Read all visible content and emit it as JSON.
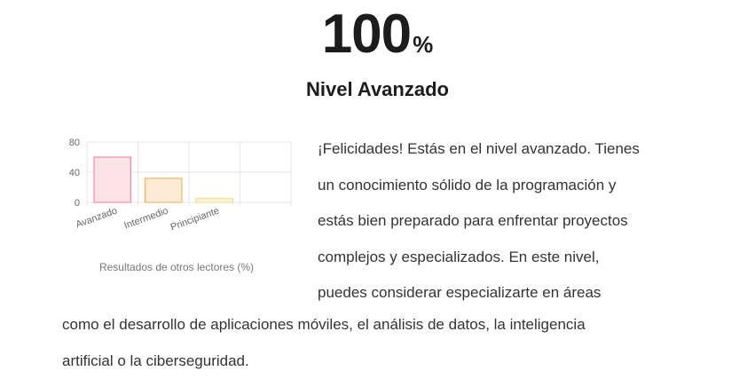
{
  "result": {
    "score": "100",
    "unit": "%",
    "level_title": "Nivel Avanzado"
  },
  "chart_data": {
    "type": "bar",
    "categories": [
      "Avanzado",
      "Intermedio",
      "Principiante",
      ""
    ],
    "values": [
      60,
      32,
      5,
      0
    ],
    "yticks": [
      0,
      40,
      80
    ],
    "ylim": [
      0,
      80
    ],
    "caption": "Resultados de otros lectores (%)",
    "colors": {
      "fills": [
        "#fde2e8",
        "#fdebd6",
        "#fef6da"
      ],
      "strokes": [
        "#f07b94",
        "#f0a94d",
        "#f2d57a"
      ],
      "grid": "#e6e6e6",
      "axis_text": "#666666"
    }
  },
  "description": {
    "lines_beside_chart": [
      "¡Felicidades! Estás en el nivel avanzado. Tienes",
      "un conocimiento sólido de la programación y",
      "estás bien preparado para enfrentar proyectos",
      "complejos y especializados. En este nivel,",
      "puedes considerar especializarte en áreas"
    ],
    "lines_full_width": [
      "como el desarrollo de aplicaciones móviles, el análisis de datos, la inteligencia",
      "artificial o la ciberseguridad."
    ]
  }
}
